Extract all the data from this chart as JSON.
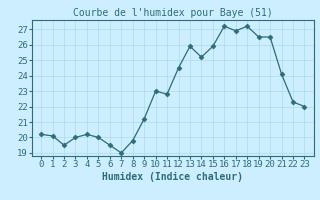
{
  "x": [
    0,
    1,
    2,
    3,
    4,
    5,
    6,
    7,
    8,
    9,
    10,
    11,
    12,
    13,
    14,
    15,
    16,
    17,
    18,
    19,
    20,
    21,
    22,
    23
  ],
  "y": [
    20.2,
    20.1,
    19.5,
    20.0,
    20.2,
    20.0,
    19.5,
    19.0,
    19.8,
    21.2,
    23.0,
    22.8,
    24.5,
    25.9,
    25.2,
    25.9,
    27.2,
    26.9,
    27.2,
    26.5,
    26.5,
    24.1,
    22.3,
    22.0
  ],
  "title": "Courbe de l'humidex pour Baye (51)",
  "xlabel": "Humidex (Indice chaleur)",
  "ylabel": "",
  "ylim": [
    18.8,
    27.6
  ],
  "yticks": [
    19,
    20,
    21,
    22,
    23,
    24,
    25,
    26,
    27
  ],
  "xticks": [
    0,
    1,
    2,
    3,
    4,
    5,
    6,
    7,
    8,
    9,
    10,
    11,
    12,
    13,
    14,
    15,
    16,
    17,
    18,
    19,
    20,
    21,
    22,
    23
  ],
  "line_color": "#2e6e6e",
  "marker": "D",
  "marker_size": 2.5,
  "bg_color": "#cceeff",
  "grid_color": "#aadddd",
  "title_fontsize": 7,
  "label_fontsize": 7,
  "tick_fontsize": 6.5
}
